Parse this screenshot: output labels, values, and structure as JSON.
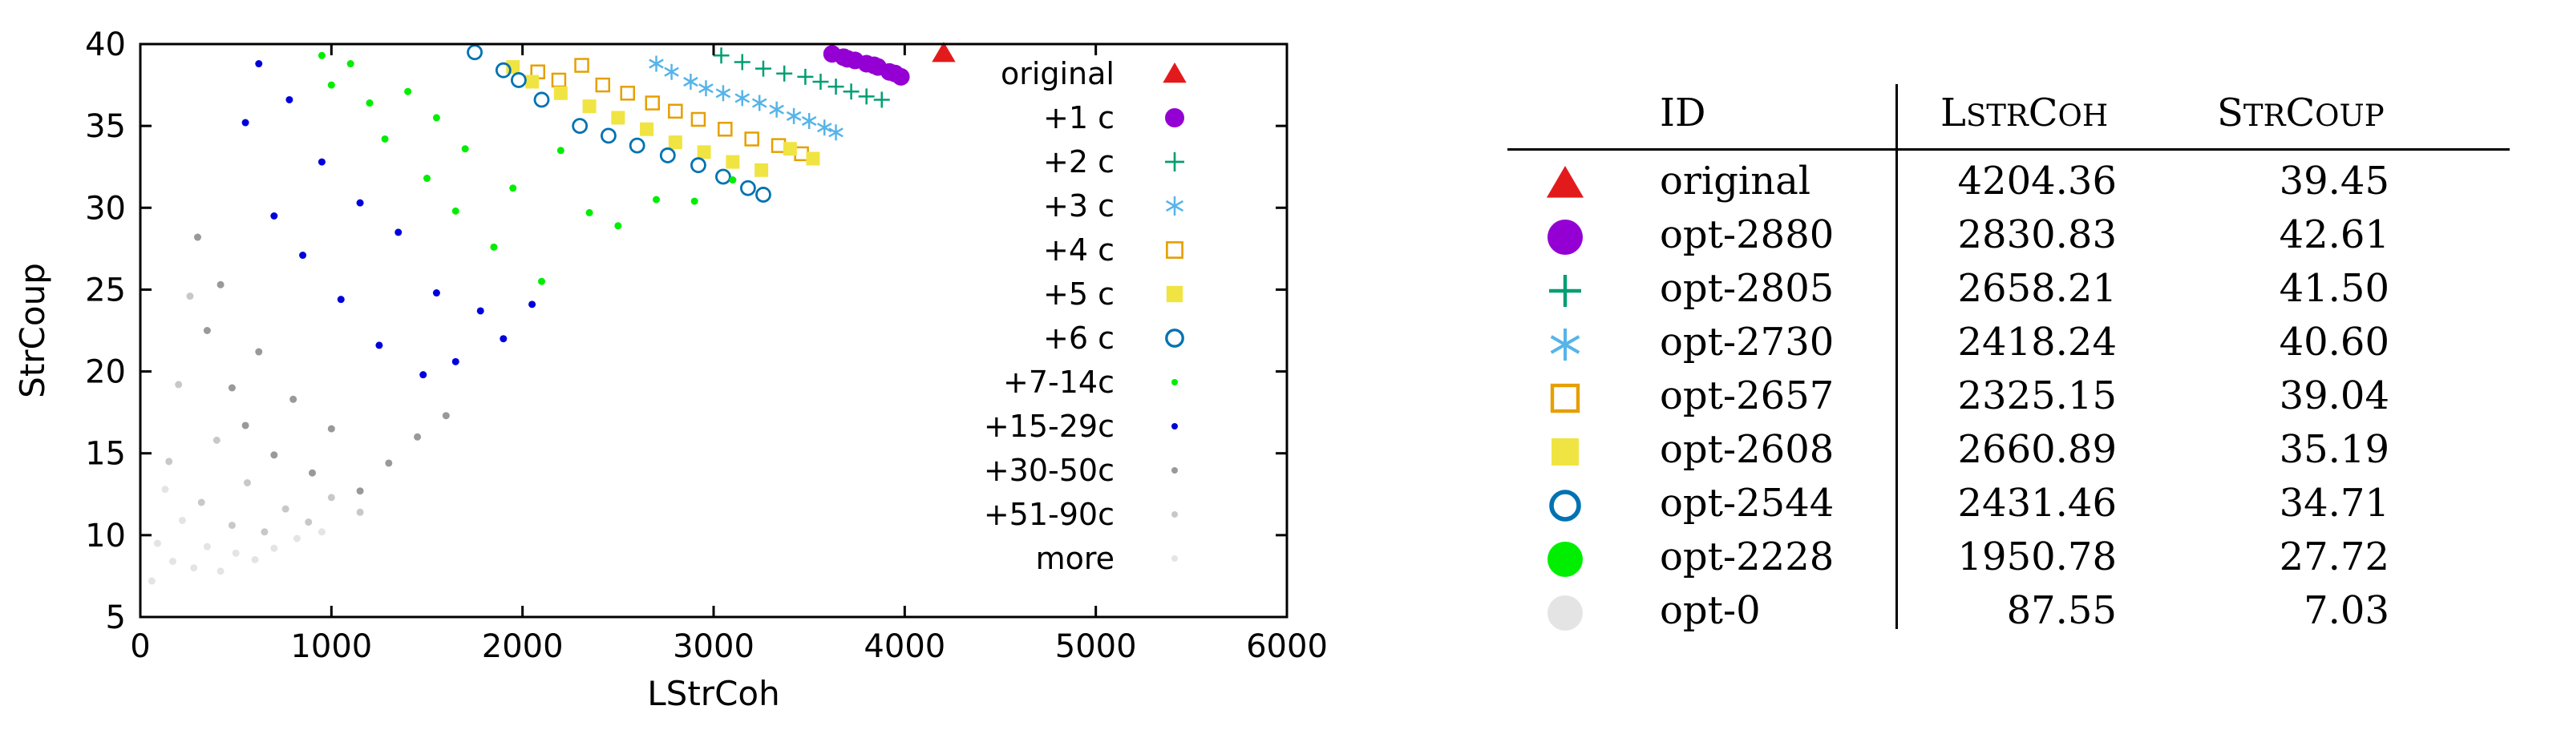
{
  "chart_data": {
    "type": "scatter",
    "xlabel": "LStrCoh",
    "ylabel": "StrCoup",
    "xlim": [
      0,
      6000
    ],
    "ylim": [
      5,
      40
    ],
    "xticks": [
      "0",
      "1000",
      "2000",
      "3000",
      "4000",
      "5000",
      "6000"
    ],
    "yticks": [
      "5",
      "10",
      "15",
      "20",
      "25",
      "30",
      "35",
      "40"
    ],
    "grid": false,
    "legend_placement": "right",
    "series": [
      {
        "name": "original",
        "marker": "triangle",
        "color": "#e31a1c",
        "points": [
          [
            4204,
            39.45
          ]
        ]
      },
      {
        "name": "+1 c",
        "marker": "circle-filled",
        "color": "#9400d3",
        "points": [
          [
            3620,
            39.4
          ],
          [
            3680,
            39.2
          ],
          [
            3740,
            39.0
          ],
          [
            3800,
            38.8
          ],
          [
            3860,
            38.6
          ],
          [
            3920,
            38.3
          ],
          [
            3980,
            38.0
          ],
          [
            3700,
            39.1
          ],
          [
            3840,
            38.7
          ],
          [
            3950,
            38.2
          ]
        ]
      },
      {
        "name": "+2 c",
        "marker": "plus",
        "color": "#009e73",
        "points": [
          [
            3040,
            39.3
          ],
          [
            3150,
            38.9
          ],
          [
            3260,
            38.5
          ],
          [
            3370,
            38.2
          ],
          [
            3480,
            38.0
          ],
          [
            3560,
            37.7
          ],
          [
            3640,
            37.4
          ],
          [
            3720,
            37.1
          ],
          [
            3800,
            36.8
          ],
          [
            3880,
            36.6
          ]
        ]
      },
      {
        "name": "+3 c",
        "marker": "asterisk",
        "color": "#56b4e9",
        "points": [
          [
            2700,
            38.8
          ],
          [
            2780,
            38.3
          ],
          [
            2880,
            37.7
          ],
          [
            2960,
            37.3
          ],
          [
            3050,
            37.0
          ],
          [
            3150,
            36.7
          ],
          [
            3240,
            36.4
          ],
          [
            3330,
            36.0
          ],
          [
            3420,
            35.6
          ],
          [
            3500,
            35.3
          ],
          [
            3580,
            34.9
          ],
          [
            3640,
            34.6
          ]
        ]
      },
      {
        "name": "+4 c",
        "marker": "square-open",
        "color": "#e69f00",
        "points": [
          [
            2080,
            38.3
          ],
          [
            2190,
            37.8
          ],
          [
            2310,
            38.7
          ],
          [
            2420,
            37.5
          ],
          [
            2550,
            37.0
          ],
          [
            2680,
            36.4
          ],
          [
            2800,
            35.9
          ],
          [
            2920,
            35.4
          ],
          [
            3060,
            34.8
          ],
          [
            3200,
            34.2
          ],
          [
            3340,
            33.8
          ],
          [
            3460,
            33.3
          ]
        ]
      },
      {
        "name": "+5 c",
        "marker": "square-filled",
        "color": "#f0e442",
        "points": [
          [
            1950,
            38.6
          ],
          [
            2050,
            37.7
          ],
          [
            2200,
            37.0
          ],
          [
            2350,
            36.2
          ],
          [
            2500,
            35.5
          ],
          [
            2650,
            34.8
          ],
          [
            2800,
            34.0
          ],
          [
            2950,
            33.4
          ],
          [
            3100,
            32.8
          ],
          [
            3250,
            32.3
          ],
          [
            3400,
            33.6
          ],
          [
            3520,
            33.0
          ]
        ]
      },
      {
        "name": "+6 c",
        "marker": "circle-open",
        "color": "#0072b2",
        "points": [
          [
            1750,
            39.5
          ],
          [
            1900,
            38.4
          ],
          [
            1980,
            37.8
          ],
          [
            2100,
            36.6
          ],
          [
            2300,
            35.0
          ],
          [
            2450,
            34.4
          ],
          [
            2600,
            33.8
          ],
          [
            2760,
            33.2
          ],
          [
            2920,
            32.6
          ],
          [
            3050,
            31.9
          ],
          [
            3180,
            31.2
          ],
          [
            3260,
            30.8
          ]
        ]
      },
      {
        "name": "+7-14c",
        "marker": "dot",
        "color": "#00ee00",
        "points": [
          [
            950,
            39.3
          ],
          [
            1000,
            37.5
          ],
          [
            1100,
            38.8
          ],
          [
            1200,
            36.4
          ],
          [
            1280,
            34.2
          ],
          [
            1400,
            37.1
          ],
          [
            1500,
            31.8
          ],
          [
            1550,
            35.5
          ],
          [
            1650,
            29.8
          ],
          [
            1700,
            33.6
          ],
          [
            1850,
            27.6
          ],
          [
            1950,
            31.2
          ],
          [
            2100,
            25.5
          ],
          [
            2200,
            33.5
          ],
          [
            2350,
            29.7
          ],
          [
            2500,
            28.9
          ],
          [
            2700,
            30.5
          ],
          [
            2900,
            30.4
          ],
          [
            3100,
            31.7
          ]
        ]
      },
      {
        "name": "+15-29c",
        "marker": "dot",
        "color": "#0000dd",
        "points": [
          [
            550,
            35.2
          ],
          [
            620,
            38.8
          ],
          [
            700,
            29.5
          ],
          [
            780,
            36.6
          ],
          [
            850,
            27.1
          ],
          [
            950,
            32.8
          ],
          [
            1050,
            24.4
          ],
          [
            1150,
            30.3
          ],
          [
            1250,
            21.6
          ],
          [
            1350,
            28.5
          ],
          [
            1480,
            19.8
          ],
          [
            1550,
            24.8
          ],
          [
            1650,
            20.6
          ],
          [
            1780,
            23.7
          ],
          [
            1900,
            22.0
          ],
          [
            2050,
            24.1
          ]
        ]
      },
      {
        "name": "+30-50c",
        "marker": "dot",
        "color": "#999999",
        "points": [
          [
            300,
            28.2
          ],
          [
            350,
            22.5
          ],
          [
            420,
            25.3
          ],
          [
            480,
            19.0
          ],
          [
            550,
            16.7
          ],
          [
            620,
            21.2
          ],
          [
            700,
            14.9
          ],
          [
            800,
            18.3
          ],
          [
            900,
            13.8
          ],
          [
            1000,
            16.5
          ],
          [
            1150,
            12.7
          ],
          [
            1300,
            14.4
          ],
          [
            1450,
            16.0
          ],
          [
            1600,
            17.3
          ]
        ]
      },
      {
        "name": "+51-90c",
        "marker": "dot",
        "color": "#c8c8c8",
        "points": [
          [
            150,
            14.5
          ],
          [
            200,
            19.2
          ],
          [
            260,
            24.6
          ],
          [
            320,
            12.0
          ],
          [
            400,
            15.8
          ],
          [
            480,
            10.6
          ],
          [
            560,
            13.2
          ],
          [
            650,
            10.2
          ],
          [
            760,
            11.6
          ],
          [
            880,
            10.8
          ],
          [
            1000,
            12.3
          ],
          [
            1150,
            11.4
          ]
        ]
      },
      {
        "name": "more",
        "marker": "dot",
        "color": "#e4e4e4",
        "points": [
          [
            60,
            7.2
          ],
          [
            90,
            9.5
          ],
          [
            130,
            12.8
          ],
          [
            170,
            8.4
          ],
          [
            220,
            10.9
          ],
          [
            280,
            8.0
          ],
          [
            350,
            9.3
          ],
          [
            420,
            7.8
          ],
          [
            500,
            8.9
          ],
          [
            600,
            8.5
          ],
          [
            700,
            9.2
          ],
          [
            820,
            9.8
          ],
          [
            950,
            10.2
          ]
        ]
      }
    ]
  },
  "table": {
    "headers": {
      "id": "ID",
      "lstrcoh_first": "L",
      "lstrcoh_mid": "STR",
      "lstrcoh_cap": "C",
      "lstrcoh_rest": "OH",
      "strcoup_first": "S",
      "strcoup_mid": "TR",
      "strcoup_cap": "C",
      "strcoup_rest": "OUP"
    },
    "rows": [
      {
        "marker": "triangle-filled",
        "color": "#e31a1c",
        "id": "original",
        "lstrcoh": "4204.36",
        "strcoup": "39.45"
      },
      {
        "marker": "circle-filled",
        "color": "#9400d3",
        "id": "opt-2880",
        "lstrcoh": "2830.83",
        "strcoup": "42.61"
      },
      {
        "marker": "plus",
        "color": "#009e73",
        "id": "opt-2805",
        "lstrcoh": "2658.21",
        "strcoup": "41.50"
      },
      {
        "marker": "asterisk",
        "color": "#56b4e9",
        "id": "opt-2730",
        "lstrcoh": "2418.24",
        "strcoup": "40.60"
      },
      {
        "marker": "square-open",
        "color": "#e69f00",
        "id": "opt-2657",
        "lstrcoh": "2325.15",
        "strcoup": "39.04"
      },
      {
        "marker": "square-filled",
        "color": "#f0e442",
        "id": "opt-2608",
        "lstrcoh": "2660.89",
        "strcoup": "35.19"
      },
      {
        "marker": "circle-open",
        "color": "#0072b2",
        "id": "opt-2544",
        "lstrcoh": "2431.46",
        "strcoup": "34.71"
      },
      {
        "marker": "circle-filled",
        "color": "#00ee00",
        "id": "opt-2228",
        "lstrcoh": "1950.78",
        "strcoup": "27.72"
      },
      {
        "marker": "circle-filled",
        "color": "#e4e4e4",
        "id": "opt-0",
        "lstrcoh": "87.55",
        "strcoup": "7.03"
      }
    ]
  }
}
